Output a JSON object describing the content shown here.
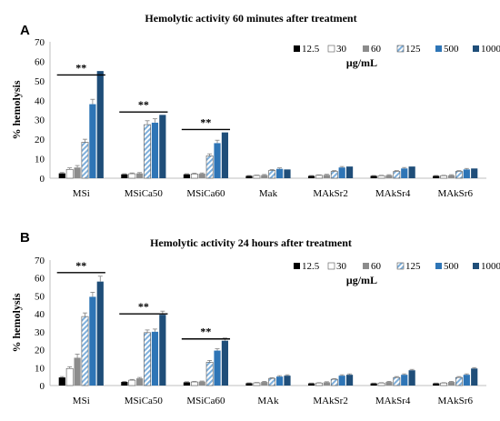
{
  "chart_data": [
    {
      "type": "bar",
      "panel_label": "A",
      "title": "Hemolytic activity 60 minutes after treatment",
      "ylabel": "% hemolysis",
      "xlabel": "",
      "ylim": [
        0,
        70
      ],
      "yticks": [
        0,
        10,
        20,
        30,
        40,
        50,
        60,
        70
      ],
      "unit_label": "μg/mL",
      "categories": [
        "MSi",
        "MSiCa50",
        "MSiCa60",
        "Mak",
        "MAkSr2",
        "MAkSr4",
        "MAkSr6"
      ],
      "series": [
        {
          "name": "12.5",
          "values": [
            2.5,
            2.0,
            2.0,
            1.2,
            1.2,
            1.2,
            1.2
          ],
          "errors": [
            0.4,
            0.3,
            0.3,
            0.2,
            0.2,
            0.2,
            0.2
          ]
        },
        {
          "name": "30",
          "values": [
            4.5,
            2.3,
            2.2,
            1.4,
            1.5,
            1.3,
            1.3
          ],
          "errors": [
            0.8,
            0.4,
            0.4,
            0.2,
            0.2,
            0.2,
            0.2
          ]
        },
        {
          "name": "60",
          "values": [
            5.5,
            2.5,
            2.3,
            1.6,
            1.7,
            1.5,
            1.5
          ],
          "errors": [
            1.0,
            0.4,
            0.4,
            0.3,
            0.3,
            0.3,
            0.3
          ]
        },
        {
          "name": "125",
          "values": [
            18.5,
            27.5,
            11.5,
            4.0,
            3.5,
            3.5,
            3.5
          ],
          "errors": [
            1.5,
            2.0,
            1.0,
            0.4,
            0.4,
            0.4,
            0.4
          ]
        },
        {
          "name": "500",
          "values": [
            38.0,
            28.5,
            18.0,
            4.8,
            5.5,
            5.0,
            4.5
          ],
          "errors": [
            2.5,
            2.0,
            1.5,
            0.5,
            0.5,
            0.5,
            0.5
          ]
        },
        {
          "name": "1000",
          "values": [
            55.0,
            32.5,
            23.5,
            4.5,
            6.0,
            6.0,
            5.0
          ],
          "errors": [
            0,
            0,
            0,
            0,
            0,
            0,
            0
          ]
        }
      ],
      "legend_position": "top-right",
      "significance": [
        {
          "label": "**",
          "category": "MSi",
          "y": 53
        },
        {
          "label": "**",
          "category": "MSiCa50",
          "y": 34
        },
        {
          "label": "**",
          "category": "MSiCa60",
          "y": 25
        }
      ]
    },
    {
      "type": "bar",
      "panel_label": "B",
      "title": "Hemolytic activity 24 hours after treatment",
      "ylabel": "% hemolysis",
      "xlabel": "",
      "ylim": [
        0,
        70
      ],
      "yticks": [
        0,
        10,
        20,
        30,
        40,
        50,
        60,
        70
      ],
      "unit_label": "μg/mL",
      "categories": [
        "MSi",
        "MSiCa50",
        "MSiCa60",
        "MAk",
        "MAkSr2",
        "MAkSr4",
        "MAkSr6"
      ],
      "series": [
        {
          "name": "12.5",
          "values": [
            4.5,
            2.0,
            1.8,
            1.3,
            1.2,
            1.2,
            1.2
          ],
          "errors": [
            0.5,
            0.3,
            0.3,
            0.2,
            0.2,
            0.2,
            0.2
          ]
        },
        {
          "name": "30",
          "values": [
            9.5,
            3.0,
            2.0,
            1.5,
            1.4,
            1.4,
            1.4
          ],
          "errors": [
            1.0,
            0.4,
            0.3,
            0.2,
            0.2,
            0.2,
            0.2
          ]
        },
        {
          "name": "60",
          "values": [
            15.5,
            4.0,
            2.2,
            2.0,
            1.8,
            2.0,
            2.0
          ],
          "errors": [
            2.0,
            0.5,
            0.3,
            0.3,
            0.3,
            0.3,
            0.3
          ]
        },
        {
          "name": "125",
          "values": [
            38.5,
            29.5,
            13.0,
            4.0,
            3.5,
            4.5,
            4.5
          ],
          "errors": [
            2.0,
            1.5,
            1.0,
            0.4,
            0.4,
            0.5,
            0.5
          ]
        },
        {
          "name": "500",
          "values": [
            49.5,
            30.0,
            19.5,
            5.0,
            5.5,
            6.0,
            6.0
          ],
          "errors": [
            2.5,
            1.5,
            1.0,
            0.5,
            0.5,
            0.5,
            0.5
          ]
        },
        {
          "name": "1000",
          "values": [
            58.0,
            39.5,
            25.0,
            5.5,
            6.0,
            8.5,
            9.5
          ],
          "errors": [
            3.0,
            2.0,
            1.5,
            0.5,
            0.5,
            0.5,
            0.5
          ]
        }
      ],
      "legend_position": "top-right",
      "significance": [
        {
          "label": "**",
          "category": "MSi",
          "y": 63
        },
        {
          "label": "**",
          "category": "MSiCa50",
          "y": 40
        },
        {
          "label": "**",
          "category": "MSiCa60",
          "y": 26
        }
      ]
    }
  ],
  "colors": {
    "12.5": "#000000",
    "30": "#ffffff",
    "60": "#8c8c8c",
    "125": "#9dc3e6",
    "500": "#2e75b6",
    "1000": "#1f4e79"
  }
}
